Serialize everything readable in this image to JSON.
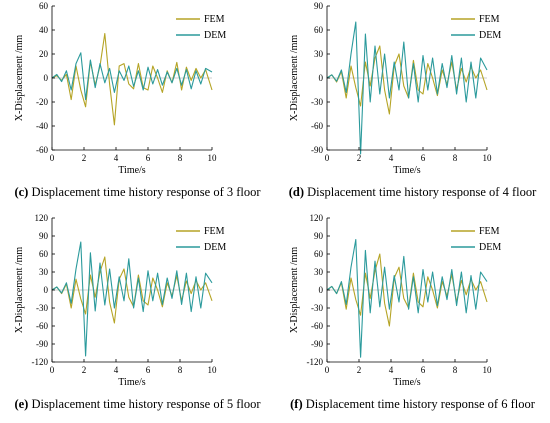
{
  "colors": {
    "fem": "#b5a426",
    "dem": "#2b9a9c"
  },
  "chart_data": [
    {
      "type": "line",
      "panel_label": "(c)",
      "caption_text": "Displacement time history response of 3 floor",
      "xlabel": "Time/s",
      "ylabel": "X-Displacement /mm",
      "xlim": [
        0,
        10
      ],
      "ylim": [
        -60,
        60
      ],
      "xticks": [
        0,
        2,
        4,
        6,
        8,
        10
      ],
      "yticks": [
        -60,
        -40,
        -20,
        0,
        20,
        40,
        60
      ],
      "legend_position": "top-right",
      "series": [
        {
          "name": "FEM",
          "color": "#b5a426",
          "x": [
            0,
            0.3,
            0.6,
            0.9,
            1.2,
            1.5,
            1.8,
            2.1,
            2.4,
            2.7,
            3.0,
            3.3,
            3.6,
            3.9,
            4.2,
            4.5,
            4.8,
            5.1,
            5.4,
            5.7,
            6.0,
            6.3,
            6.6,
            6.9,
            7.2,
            7.5,
            7.8,
            8.1,
            8.4,
            8.7,
            9.0,
            9.3,
            9.6,
            10.0
          ],
          "y": [
            0,
            2,
            -2,
            3,
            -18,
            10,
            -10,
            -24,
            14,
            -6,
            10,
            37,
            -5,
            -39,
            10,
            12,
            -5,
            -9,
            12,
            -8,
            -10,
            10,
            0,
            -12,
            6,
            -4,
            13,
            -10,
            9,
            -2,
            8,
            0,
            7,
            -10
          ]
        },
        {
          "name": "DEM",
          "color": "#2b9a9c",
          "x": [
            0,
            0.3,
            0.6,
            0.9,
            1.2,
            1.5,
            1.8,
            2.1,
            2.4,
            2.7,
            3.0,
            3.3,
            3.6,
            3.9,
            4.2,
            4.5,
            4.8,
            5.1,
            5.4,
            5.7,
            6.0,
            6.3,
            6.6,
            6.9,
            7.2,
            7.5,
            7.8,
            8.1,
            8.4,
            8.7,
            9.0,
            9.3,
            9.6,
            10.0
          ],
          "y": [
            0,
            3,
            -3,
            6,
            -10,
            12,
            21,
            -18,
            15,
            -8,
            12,
            -4,
            8,
            -12,
            6,
            -2,
            10,
            -7,
            6,
            -10,
            9,
            -5,
            7,
            -6,
            5,
            -4,
            8,
            -6,
            7,
            -9,
            6,
            -5,
            8,
            5
          ]
        }
      ]
    },
    {
      "type": "line",
      "panel_label": "(d)",
      "caption_text": "Displacement time history response of 4 floor",
      "xlabel": "Time/s",
      "ylabel": "X-Displacement /mm",
      "xlim": [
        0,
        10
      ],
      "ylim": [
        -90,
        90
      ],
      "xticks": [
        0,
        2,
        4,
        6,
        8,
        10
      ],
      "yticks": [
        -90,
        -60,
        -30,
        0,
        30,
        60,
        90
      ],
      "legend_position": "top-right",
      "series": [
        {
          "name": "FEM",
          "color": "#b5a426",
          "x": [
            0,
            0.3,
            0.6,
            0.9,
            1.2,
            1.5,
            1.8,
            2.1,
            2.4,
            2.7,
            3.0,
            3.3,
            3.6,
            3.9,
            4.2,
            4.5,
            4.8,
            5.1,
            5.4,
            5.7,
            6.0,
            6.3,
            6.6,
            6.9,
            7.2,
            7.5,
            7.8,
            8.1,
            8.4,
            8.7,
            9.0,
            9.3,
            9.6,
            10.0
          ],
          "y": [
            0,
            4,
            -5,
            8,
            -25,
            15,
            -12,
            -35,
            20,
            -10,
            25,
            40,
            -15,
            -45,
            15,
            30,
            -10,
            -25,
            22,
            -15,
            -20,
            18,
            0,
            -22,
            10,
            -8,
            20,
            -15,
            12,
            -5,
            14,
            0,
            10,
            -15
          ]
        },
        {
          "name": "DEM",
          "color": "#2b9a9c",
          "x": [
            0,
            0.3,
            0.6,
            0.9,
            1.2,
            1.5,
            1.8,
            2.1,
            2.4,
            2.7,
            3.0,
            3.3,
            3.6,
            3.9,
            4.2,
            4.5,
            4.8,
            5.1,
            5.4,
            5.7,
            6.0,
            6.3,
            6.6,
            6.9,
            7.2,
            7.5,
            7.8,
            8.1,
            8.4,
            8.7,
            9.0,
            9.3,
            9.6,
            10.0
          ],
          "y": [
            0,
            4,
            -4,
            10,
            -18,
            30,
            70,
            -95,
            55,
            -30,
            40,
            -20,
            30,
            -25,
            20,
            -15,
            45,
            -25,
            18,
            -30,
            28,
            -15,
            25,
            -20,
            18,
            -12,
            28,
            -20,
            25,
            -30,
            20,
            -25,
            25,
            10
          ]
        }
      ]
    },
    {
      "type": "line",
      "panel_label": "(e)",
      "caption_text": "Displacement time history response of 5 floor",
      "xlabel": "Time/s",
      "ylabel": "X-Displacement /mm",
      "xlim": [
        0,
        10
      ],
      "ylim": [
        -120,
        120
      ],
      "xticks": [
        0,
        2,
        4,
        6,
        8,
        10
      ],
      "yticks": [
        -120,
        -90,
        -60,
        -30,
        0,
        30,
        60,
        90,
        120
      ],
      "legend_position": "top-right",
      "series": [
        {
          "name": "FEM",
          "color": "#b5a426",
          "x": [
            0,
            0.3,
            0.6,
            0.9,
            1.2,
            1.5,
            1.8,
            2.1,
            2.4,
            2.7,
            3.0,
            3.3,
            3.6,
            3.9,
            4.2,
            4.5,
            4.8,
            5.1,
            5.4,
            5.7,
            6.0,
            6.3,
            6.6,
            6.9,
            7.2,
            7.5,
            7.8,
            8.1,
            8.4,
            8.7,
            9.0,
            9.3,
            9.6,
            10.0
          ],
          "y": [
            0,
            5,
            -6,
            10,
            -30,
            18,
            -15,
            -40,
            25,
            -12,
            30,
            55,
            -20,
            -55,
            18,
            35,
            -12,
            -28,
            25,
            -18,
            -25,
            20,
            0,
            -28,
            12,
            -10,
            24,
            -18,
            15,
            -6,
            16,
            0,
            12,
            -18
          ]
        },
        {
          "name": "DEM",
          "color": "#2b9a9c",
          "x": [
            0,
            0.3,
            0.6,
            0.9,
            1.2,
            1.5,
            1.8,
            2.1,
            2.4,
            2.7,
            3.0,
            3.3,
            3.6,
            3.9,
            4.2,
            4.5,
            4.8,
            5.1,
            5.4,
            5.7,
            6.0,
            6.3,
            6.6,
            6.9,
            7.2,
            7.5,
            7.8,
            8.1,
            8.4,
            8.7,
            9.0,
            9.3,
            9.6,
            10.0
          ],
          "y": [
            0,
            5,
            -5,
            12,
            -22,
            35,
            80,
            -110,
            62,
            -35,
            45,
            -25,
            35,
            -30,
            22,
            -18,
            52,
            -30,
            20,
            -36,
            32,
            -18,
            28,
            -24,
            20,
            -14,
            32,
            -24,
            28,
            -36,
            22,
            -30,
            28,
            12
          ]
        }
      ]
    },
    {
      "type": "line",
      "panel_label": "(f)",
      "caption_text": "Displacement time history response of 6 floor",
      "xlabel": "Time/s",
      "ylabel": "X-Displacement /mm",
      "xlim": [
        0,
        10
      ],
      "ylim": [
        -120,
        120
      ],
      "xticks": [
        0,
        2,
        4,
        6,
        8,
        10
      ],
      "yticks": [
        -120,
        -90,
        -60,
        -30,
        0,
        30,
        60,
        90,
        120
      ],
      "legend_position": "top-right",
      "series": [
        {
          "name": "FEM",
          "color": "#b5a426",
          "x": [
            0,
            0.3,
            0.6,
            0.9,
            1.2,
            1.5,
            1.8,
            2.1,
            2.4,
            2.7,
            3.0,
            3.3,
            3.6,
            3.9,
            4.2,
            4.5,
            4.8,
            5.1,
            5.4,
            5.7,
            6.0,
            6.3,
            6.6,
            6.9,
            7.2,
            7.5,
            7.8,
            8.1,
            8.4,
            8.7,
            9.0,
            9.3,
            9.6,
            10.0
          ],
          "y": [
            0,
            6,
            -6,
            12,
            -32,
            20,
            -16,
            -42,
            28,
            -14,
            32,
            60,
            -22,
            -60,
            20,
            38,
            -14,
            -30,
            28,
            -20,
            -28,
            22,
            0,
            -30,
            14,
            -10,
            26,
            -20,
            16,
            -8,
            18,
            0,
            14,
            -20
          ]
        },
        {
          "name": "DEM",
          "color": "#2b9a9c",
          "x": [
            0,
            0.3,
            0.6,
            0.9,
            1.2,
            1.5,
            1.8,
            2.1,
            2.4,
            2.7,
            3.0,
            3.3,
            3.6,
            3.9,
            4.2,
            4.5,
            4.8,
            5.1,
            5.4,
            5.7,
            6.0,
            6.3,
            6.6,
            6.9,
            7.2,
            7.5,
            7.8,
            8.1,
            8.4,
            8.7,
            9.0,
            9.3,
            9.6,
            10.0
          ],
          "y": [
            0,
            6,
            -6,
            14,
            -24,
            38,
            84,
            -112,
            66,
            -38,
            48,
            -28,
            38,
            -32,
            24,
            -20,
            56,
            -32,
            22,
            -38,
            34,
            -20,
            30,
            -26,
            22,
            -16,
            34,
            -26,
            30,
            -38,
            24,
            -32,
            30,
            14
          ]
        }
      ]
    }
  ]
}
